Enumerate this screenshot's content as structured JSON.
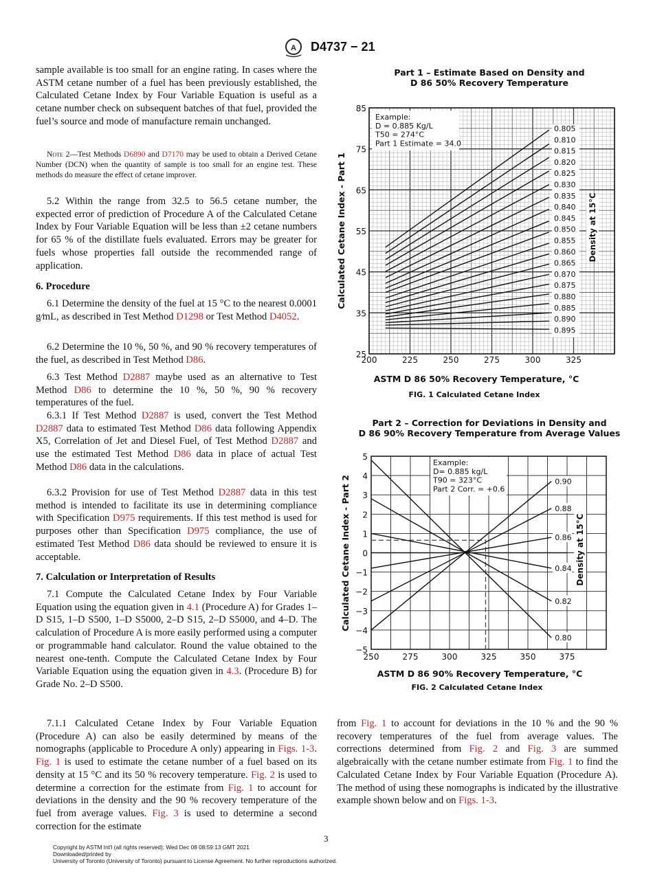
{
  "header": {
    "designation": "D4737 − 21",
    "logo_text": "ASTM"
  },
  "body": {
    "paras": [
      {
        "segs": [
          "sample available is too small for an engine rating. In cases where the ASTM cetane number of a fuel has been previously established, the Calculated Cetane Index by Four Variable Equation is useful as a cetane number check on subsequent batches of that fuel, provided the fuel’s source and mode of manufacture remain unchanged."
        ]
      },
      {
        "segs": [
          {
            "sc": "Note"
          },
          " 2—Test Methods ",
          {
            "link": "D6890"
          },
          " and ",
          {
            "link": "D7170"
          },
          " may be used to obtain a Derived Cetane Number (DCN) when the quantity of sample is too small for an engine test. These methods do measure the effect of cetane improver."
        ]
      },
      {
        "segs": [
          "5.2 Within the range from 32.5 to 56.5 cetane number, the expected error of prediction of Procedure A of the Calculated Cetane Index by Four Variable Equation will be less than ±2 cetane numbers for 65 % of the distillate fuels evaluated. Errors may be greater for fuels whose properties fall outside the recommended range of application."
        ]
      },
      {
        "segs": [
          "6. Procedure"
        ]
      },
      {
        "segs": [
          "6.1 Determine the density of the fuel at 15 °C to the nearest 0.0001 g⁄mL, as described in Test Method ",
          {
            "link": "D1298"
          },
          " or Test Method ",
          {
            "link": "D4052"
          },
          "."
        ]
      },
      {
        "segs": [
          "6.2 Determine the 10 %, 50 %, and 90 % recovery temperatures of the fuel, as described in Test Method ",
          {
            "link": "D86"
          },
          "."
        ]
      },
      {
        "segs": [
          "6.3 Test Method ",
          {
            "link": "D2887"
          },
          " maybe used as an alternative to Test Method ",
          {
            "link": "D86"
          },
          " to determine the 10 %, 50 %, 90 % recovery temperatures of the fuel."
        ]
      },
      {
        "segs": [
          "6.3.1 If Test Method ",
          {
            "link": "D2887"
          },
          " is used, convert the Test Method ",
          {
            "link": "D2887"
          },
          " data to estimated Test Method ",
          {
            "link": "D86"
          },
          " data following Appendix X5, Correlation of Jet and Diesel Fuel, of Test Method ",
          {
            "link": "D2887"
          },
          " and use the estimated Test Method ",
          {
            "link": "D86"
          },
          " data in place of actual Test Method ",
          {
            "link": "D86"
          },
          " data in the calculations."
        ]
      },
      {
        "segs": [
          "6.3.2 Provision for use of Test Method ",
          {
            "link": "D2887"
          },
          " data in this test method is intended to facilitate its use in determining compliance with Specification ",
          {
            "link": "D975"
          },
          " requirements. If this test method is used for purposes other than Specification ",
          {
            "link": "D975"
          },
          " compliance, the use of estimated Test Method ",
          {
            "link": "D86"
          },
          " data should be reviewed to ensure it is acceptable."
        ]
      },
      {
        "segs": [
          "7. Calculation or Interpretation of Results"
        ]
      },
      {
        "segs": [
          "7.1 Compute the Calculated Cetane Index by Four Variable Equation using the equation given in ",
          {
            "link": "4.1"
          },
          " (Procedure A) for Grades 1–D S15, 1–D S500, 1–D S5000, 2–D S15, 2–D S5000, and 4–D. The calculation of Procedure A is more easily performed using a computer or programmable hand calculator. Round the value obtained to the nearest one-tenth. Compute the Calculated Cetane Index by Four Variable Equation using the equation given in ",
          {
            "link": "4.3"
          },
          ". (Procedure B) for Grade No. 2–D S500."
        ]
      },
      {
        "segs": [
          "7.1.1 Calculated Cetane Index by Four Variable Equation (Procedure A) can also be easily determined by means of the nomographs (applicable to Procedure A only) appearing in ",
          {
            "link": "Figs. 1-3"
          },
          ". ",
          {
            "link": "Fig. 1"
          },
          " is used to estimate the cetane number of a fuel based on its density at 15 °C and its 50 % recovery temperature. ",
          {
            "link": "Fig. 2"
          },
          " is used to determine a correction for the estimate from ",
          {
            "link": "Fig. 1"
          },
          " to account for deviations in the density and the 90 % recovery temperature of the fuel from average values. ",
          {
            "link": "Fig. 3"
          },
          " is used to determine a second correction for the estimate"
        ]
      },
      {
        "segs": [
          "from ",
          {
            "link": "Fig. 1"
          },
          " to account for deviations in the 10 % and the 90 % recovery temperatures of the fuel from average values. The corrections determined from ",
          {
            "link": "Fig. 2"
          },
          " and ",
          {
            "link": "Fig. 3"
          },
          " are summed algebraically with the cetane number estimate from ",
          {
            "link": "Fig. 1"
          },
          " to find the Calculated Cetane Index by Four Variable Equation (Procedure A). The method of using these nomographs is indicated by the illustrative example shown below and on ",
          {
            "link": "Figs. 1-3"
          },
          "."
        ]
      }
    ]
  },
  "chart_data": [
    {
      "type": "line",
      "title": [
        "Part 1 – Estimate Based on Density and",
        "D 86 50% Recovery Temperature"
      ],
      "xlabel": "ASTM D 86 50% Recovery Temperature, °C",
      "ylabel": "Calculated Cetane Index - Part 1",
      "legend_title": "Density at 15°C",
      "caption": "FIG. 1 Calculated Cetane Index",
      "xlim": [
        200,
        350
      ],
      "ylim": [
        25,
        85
      ],
      "xticks": [
        "200",
        "225",
        "250",
        "275",
        "300",
        "325"
      ],
      "yticks": [
        "25",
        "35",
        "45",
        "55",
        "65",
        "75",
        "85"
      ],
      "example": [
        "Example:",
        "D = 0.885 Kg/L",
        "T50 = 274°C",
        "Part 1 Estimate = 34.0"
      ],
      "series": [
        {
          "name": "0.805",
          "x": [
            210,
            310
          ],
          "y": [
            51.0,
            79.6
          ]
        },
        {
          "name": "0.810",
          "x": [
            210,
            310
          ],
          "y": [
            49.5,
            76.2
          ]
        },
        {
          "name": "0.815",
          "x": [
            210,
            310
          ],
          "y": [
            48.0,
            72.9
          ]
        },
        {
          "name": "0.820",
          "x": [
            210,
            310
          ],
          "y": [
            46.6,
            69.6
          ]
        },
        {
          "name": "0.825",
          "x": [
            210,
            310
          ],
          "y": [
            45.1,
            66.3
          ]
        },
        {
          "name": "0.830",
          "x": [
            210,
            310
          ],
          "y": [
            43.6,
            63.2
          ]
        },
        {
          "name": "0.835",
          "x": [
            210,
            310
          ],
          "y": [
            42.2,
            60.3
          ]
        },
        {
          "name": "0.840",
          "x": [
            210,
            310
          ],
          "y": [
            41.0,
            57.4
          ]
        },
        {
          "name": "0.845",
          "x": [
            210,
            310
          ],
          "y": [
            40.0,
            54.7
          ]
        },
        {
          "name": "0.850",
          "x": [
            210,
            310
          ],
          "y": [
            38.6,
            52.0
          ]
        },
        {
          "name": "0.855",
          "x": [
            210,
            310
          ],
          "y": [
            37.5,
            49.4
          ]
        },
        {
          "name": "0.860",
          "x": [
            210,
            310
          ],
          "y": [
            36.5,
            46.9
          ]
        },
        {
          "name": "0.865",
          "x": [
            210,
            310
          ],
          "y": [
            35.5,
            44.4
          ]
        },
        {
          "name": "0.870",
          "x": [
            210,
            310
          ],
          "y": [
            34.7,
            42.0
          ]
        },
        {
          "name": "0.875",
          "x": [
            210,
            310
          ],
          "y": [
            34.0,
            39.6
          ]
        },
        {
          "name": "0.880",
          "x": [
            210,
            310
          ],
          "y": [
            33.3,
            37.3
          ]
        },
        {
          "name": "0.885",
          "x": [
            210,
            310
          ],
          "y": [
            32.6,
            35.0
          ]
        },
        {
          "name": "0.890",
          "x": [
            210,
            310
          ],
          "y": [
            32.0,
            33.0
          ]
        },
        {
          "name": "0.895",
          "x": [
            210,
            310
          ],
          "y": [
            31.3,
            31.0
          ]
        }
      ]
    },
    {
      "type": "line",
      "title": [
        "Part 2 – Correction for Deviations in Density and",
        "D 86 90% Recovery Temperature from Average Values"
      ],
      "xlabel": "ASTM D 86 90% Recovery Temperature, °C",
      "ylabel": "Calculated Cetane Index - Part 2",
      "legend_title": "Density at 15°C",
      "caption": "FIG. 2 Calculated Cetane Index",
      "xlim": [
        250,
        400
      ],
      "ylim": [
        -5,
        5
      ],
      "xticks": [
        "250",
        "275",
        "300",
        "325",
        "350",
        "375"
      ],
      "yticks": [
        "−5",
        "−4",
        "−3",
        "−2",
        "−1",
        "0",
        "1",
        "2",
        "3",
        "4",
        "5"
      ],
      "example": [
        "Example:",
        "D= 0.885 kg/L",
        "T90 = 323°C",
        "Part 2 Corr. = +0.6"
      ],
      "series": [
        {
          "name": "0.90",
          "x": [
            250,
            365
          ],
          "y": [
            -4.0,
            3.7
          ]
        },
        {
          "name": "0.88",
          "x": [
            250,
            365
          ],
          "y": [
            -2.5,
            2.3
          ]
        },
        {
          "name": "0.86",
          "x": [
            250,
            365
          ],
          "y": [
            -0.8,
            0.8
          ]
        },
        {
          "name": "0.84",
          "x": [
            250,
            365
          ],
          "y": [
            1.0,
            -0.8
          ]
        },
        {
          "name": "0.82",
          "x": [
            250,
            365
          ],
          "y": [
            2.8,
            -2.5
          ]
        },
        {
          "name": "0.80",
          "x": [
            250,
            365
          ],
          "y": [
            4.8,
            -4.4
          ]
        },
        {
          "name": "",
          "x": [
            250,
            375
          ],
          "y": [
            0,
            0
          ]
        }
      ],
      "example_path": {
        "x": [
          250,
          323,
          323
        ],
        "y": [
          0.65,
          0.65,
          -5
        ]
      }
    }
  ],
  "footer": {
    "page_number": "3",
    "lines": [
      "Copyright by ASTM Int'l (all rights reserved); Wed Dec 08 08:59:13 GMT 2021",
      "Downloaded/printed by",
      "University of Toronto (University of Toronto) pursuant to License Agreement. No further reproductions authorized."
    ]
  }
}
